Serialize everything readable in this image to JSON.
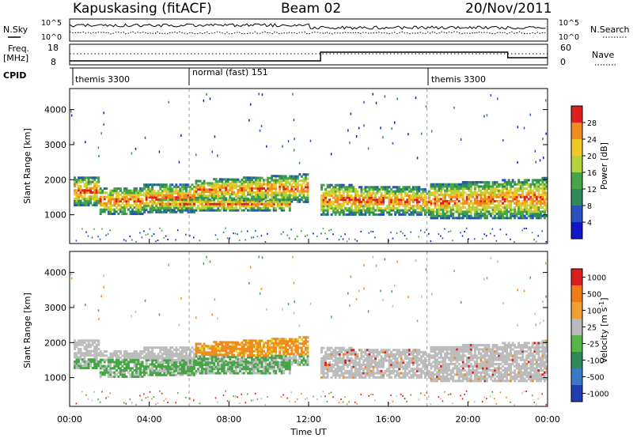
{
  "header": {
    "station": "Kapuskasing (fitACF)",
    "beam": "Beam 02",
    "date": "20/Nov/2011"
  },
  "strips": {
    "nsky_label": "N.Sky",
    "nsearch_label": "N.Search",
    "noise_ticks": [
      "10^5",
      "10^0"
    ],
    "freq_label": "Freq.",
    "freq_unit": "[MHz]",
    "freq_ticks": [
      "18",
      "8"
    ],
    "nave_label": "Nave",
    "nave_ticks": [
      "60",
      "0"
    ],
    "cpid_label": "CPID"
  },
  "cpid": [
    {
      "label": "themis 3300",
      "start": 0.5
    },
    {
      "label": "normal (fast) 151",
      "start": 6.0
    },
    {
      "label": "themis 3300",
      "start": 17.95
    }
  ],
  "colors": {
    "dark_blue": "#1f1fa0",
    "blue": "#3c64c8",
    "teal": "#2e8b7a",
    "green": "#46a546",
    "yellow": "#d8d82a",
    "orange": "#f08c1e",
    "red": "#dc2020",
    "gray": "#bcbcbc"
  },
  "chart_data": [
    {
      "type": "heatmap",
      "name": "power",
      "ylabel": "Slant Range [km]",
      "yticks": [
        1000,
        2000,
        3000,
        4000
      ],
      "ylim": [
        180,
        4600
      ],
      "xlim": [
        0,
        24
      ],
      "colorbar": {
        "label": "Power [dB]",
        "ticks": [
          "4",
          "8",
          "12",
          "16",
          "20",
          "24",
          "28"
        ],
        "colors": [
          "#1414c8",
          "#2850c0",
          "#2e8b57",
          "#46a546",
          "#b4d23c",
          "#f0c828",
          "#f08c1e",
          "#dc2020"
        ]
      }
    },
    {
      "type": "heatmap",
      "name": "velocity",
      "ylabel": "Slant Range [km]",
      "yticks": [
        1000,
        2000,
        3000,
        4000
      ],
      "ylim": [
        180,
        4600
      ],
      "xlim": [
        0,
        24
      ],
      "xlabel": "Time UT",
      "xticks": [
        "00:00",
        "04:00",
        "08:00",
        "12:00",
        "16:00",
        "20:00",
        "00:00"
      ],
      "colorbar": {
        "label": "Velocity [m s",
        "label_sup": "-1",
        "ticks": [
          "1000",
          "500",
          "100",
          "25",
          "-25",
          "-100",
          "-500",
          "-1000"
        ],
        "colors": [
          "#1e3cb4",
          "#3c78c8",
          "#2e8b57",
          "#5ab44b",
          "#b9b9b9",
          "#f0a030",
          "#f07a14",
          "#dc1e1e"
        ]
      }
    }
  ]
}
